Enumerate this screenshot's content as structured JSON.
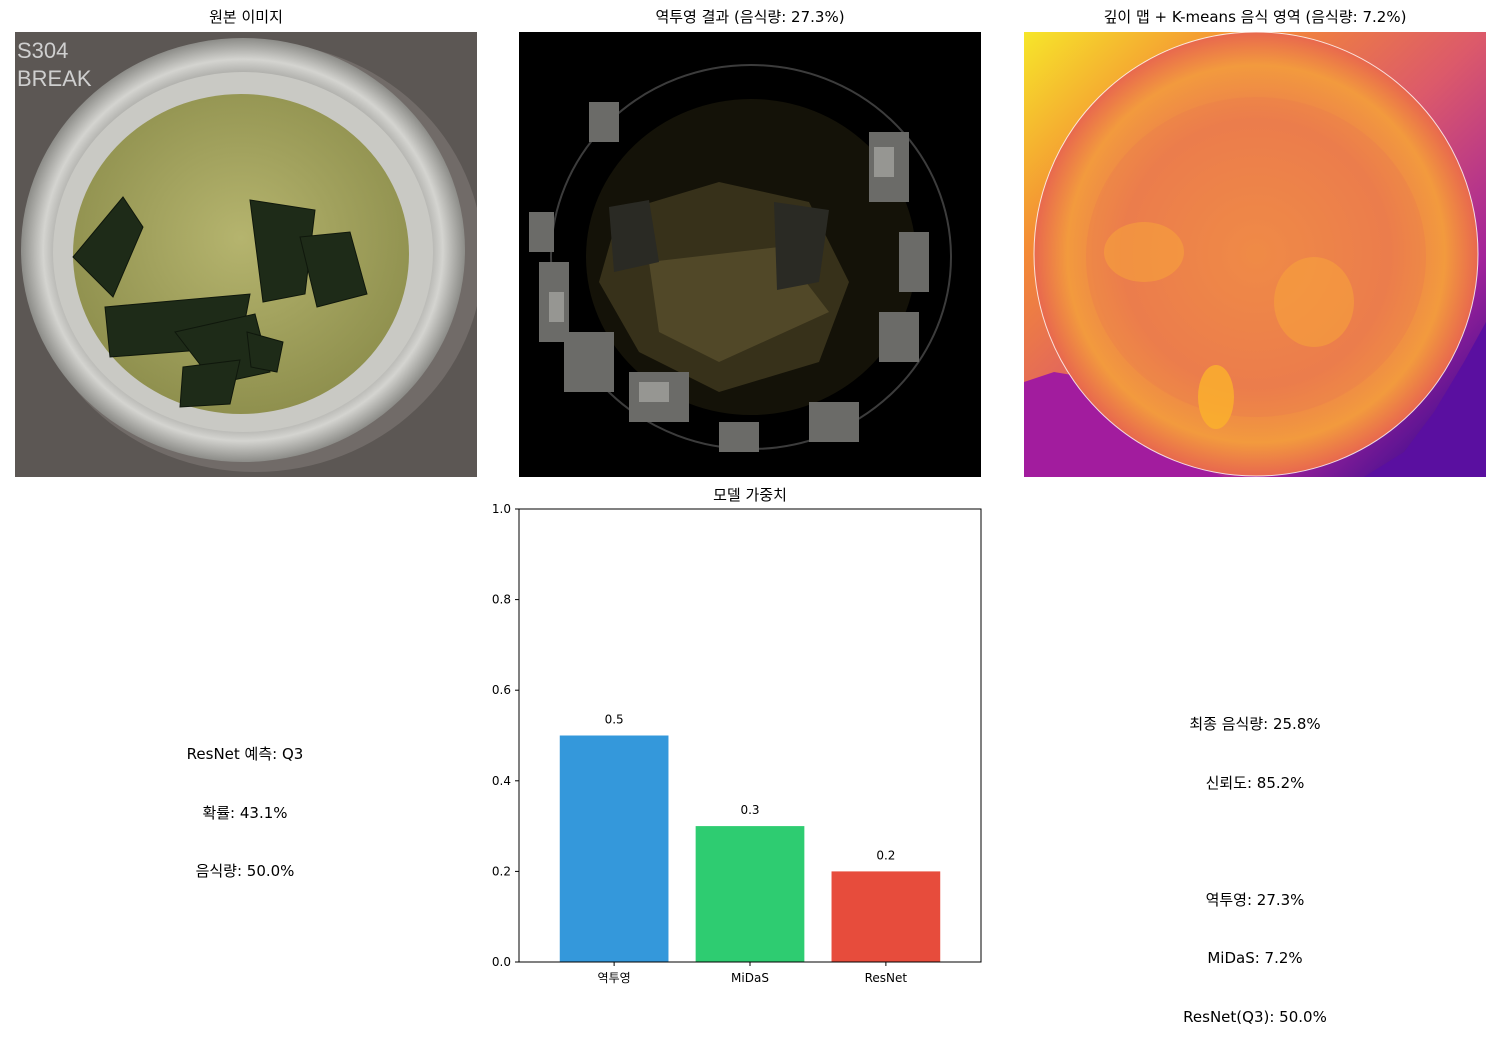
{
  "panels": {
    "original": {
      "title": "원본 이미지",
      "plate_stamp": [
        "S304",
        "BREAK"
      ]
    },
    "backprojection": {
      "title": "역투영 결과 (음식량: 27.3%)"
    },
    "depth": {
      "title": "깊이 맵 + K-means 음식 영역 (음식량: 7.2%)"
    }
  },
  "resnet_info": {
    "lines": [
      "ResNet 예측: Q3",
      "확률: 43.1%",
      "음식량: 50.0%"
    ]
  },
  "summary": {
    "lines": [
      "최종 음식량: 25.8%",
      "신뢰도: 85.2%",
      "",
      "역투영: 27.3%",
      "MiDaS: 7.2%",
      "ResNet(Q3): 50.0%"
    ]
  },
  "chart_data": {
    "type": "bar",
    "title": "모델 가중치",
    "categories": [
      "역투영",
      "MiDaS",
      "ResNet"
    ],
    "values": [
      0.5,
      0.3,
      0.2
    ],
    "value_labels": [
      "0.5",
      "0.3",
      "0.2"
    ],
    "colors": [
      "#3498db",
      "#2ecc71",
      "#e74c3c"
    ],
    "ylim": [
      0,
      1.0
    ],
    "yticks": [
      0.0,
      0.2,
      0.4,
      0.6,
      0.8,
      1.0
    ],
    "ytick_labels": [
      "0.0",
      "0.2",
      "0.4",
      "0.6",
      "0.8",
      "1.0"
    ],
    "xlabel": "",
    "ylabel": "",
    "grid": false,
    "legend": false
  }
}
